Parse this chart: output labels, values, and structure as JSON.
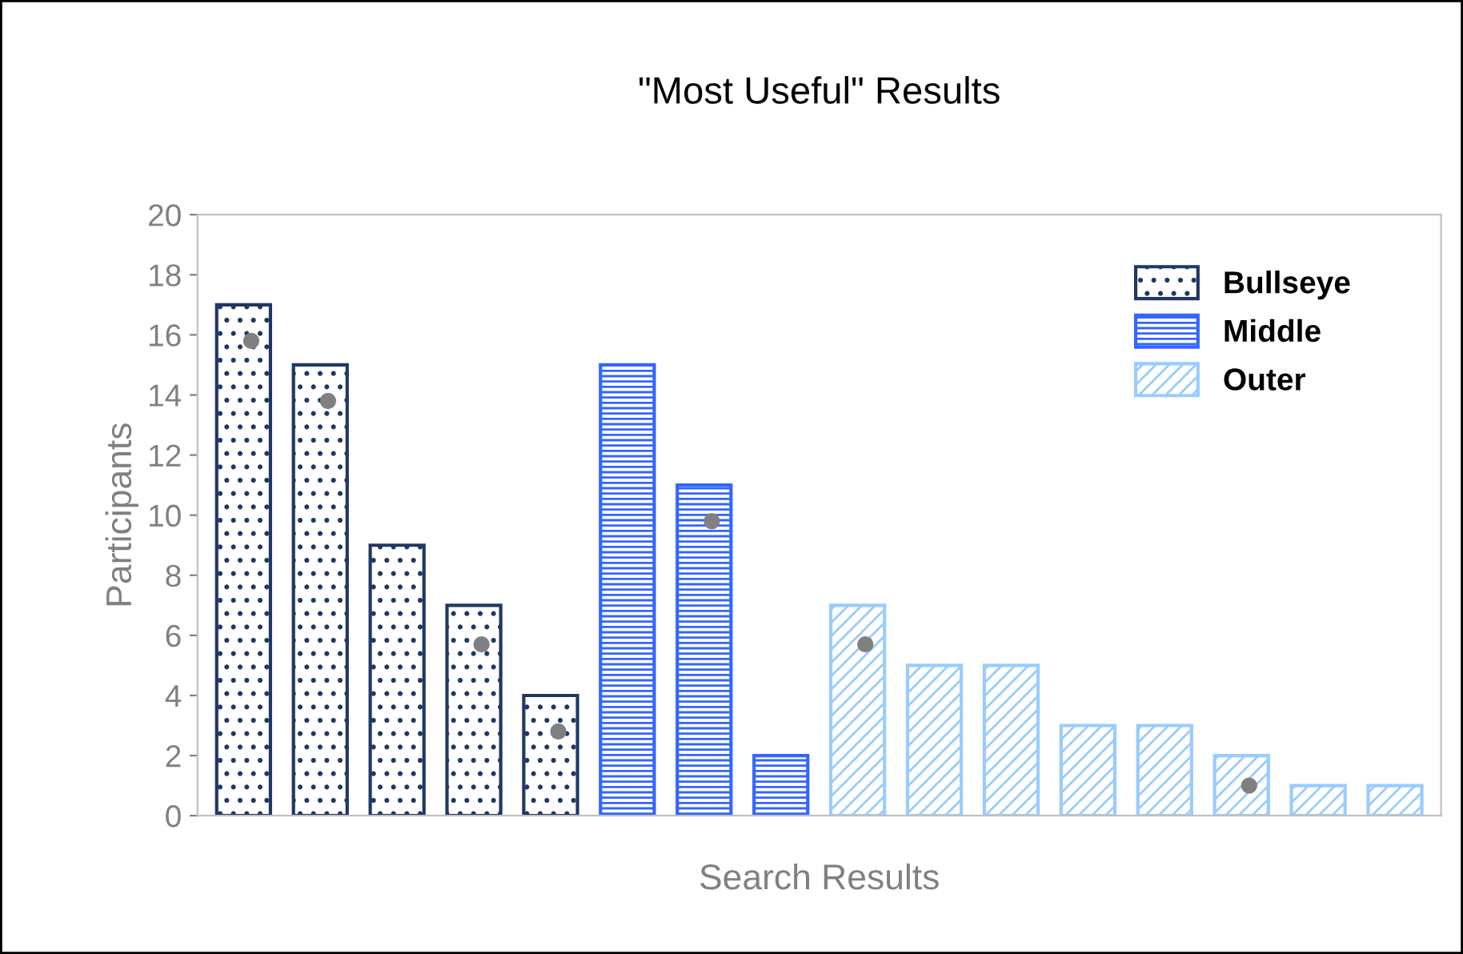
{
  "chart_data": {
    "type": "bar",
    "title": "\"Most Useful\" Results",
    "xlabel": "Search Results",
    "ylabel": "Participants",
    "categories": [
      null,
      null,
      null,
      null,
      null,
      null,
      null,
      null,
      null,
      null,
      null,
      null,
      null,
      null,
      null,
      null
    ],
    "series": [
      {
        "name": "Bullseye",
        "color": "#1f3864",
        "values": [
          17,
          15,
          9,
          7,
          4,
          null,
          null,
          null,
          null,
          null,
          null,
          null,
          null,
          null,
          null,
          null
        ]
      },
      {
        "name": "Middle",
        "color": "#3366ff",
        "values": [
          null,
          null,
          null,
          null,
          null,
          15,
          11,
          2,
          null,
          null,
          null,
          null,
          null,
          null,
          null,
          null
        ]
      },
      {
        "name": "Outer",
        "color": "#99ccff",
        "values": [
          null,
          null,
          null,
          null,
          null,
          null,
          null,
          null,
          7,
          5,
          5,
          3,
          3,
          2,
          1,
          1
        ]
      },
      {
        "type": "scatter",
        "color": "#808080",
        "values": [
          15.8,
          13.8,
          null,
          5.7,
          2.8,
          null,
          9.8,
          null,
          5.7,
          null,
          null,
          null,
          null,
          1.0,
          null,
          null
        ]
      }
    ],
    "ylim": [
      0,
      20
    ],
    "yticks": [
      0,
      2,
      4,
      6,
      8,
      10,
      12,
      14,
      16,
      18,
      20
    ],
    "grid": false,
    "legend": "top right",
    "marker": "circle"
  }
}
